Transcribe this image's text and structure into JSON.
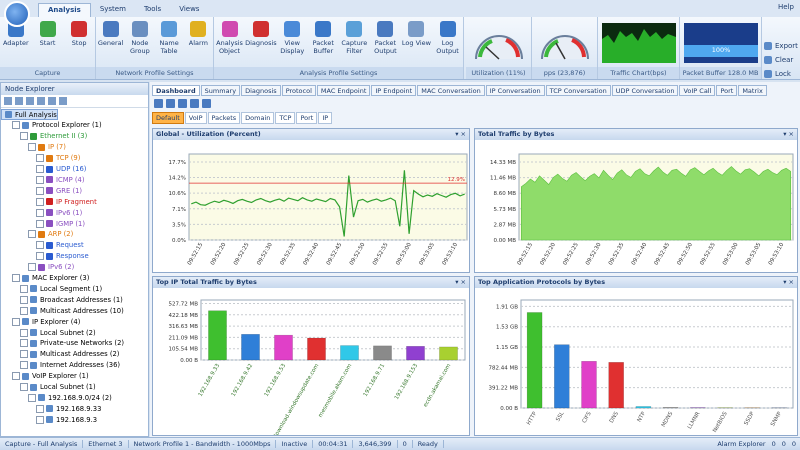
{
  "app": {
    "tabs": [
      "Analysis",
      "System",
      "Tools",
      "Views"
    ],
    "help": "Help",
    "side_actions": [
      "Export",
      "Clear",
      "Lock"
    ]
  },
  "ribbon": {
    "groups": [
      {
        "label": "Capture",
        "buttons": [
          "Adapter",
          "Start",
          "Stop"
        ]
      },
      {
        "label": "Network Profile Settings",
        "buttons": [
          "General",
          "Node Group",
          "Name Table",
          "Alarm"
        ]
      },
      {
        "label": "Analysis Profile Settings",
        "buttons": [
          "Analysis Object",
          "Diagnosis",
          "View Display",
          "Packet Buffer",
          "Capture Filter",
          "Packet Output",
          "Log View",
          "Log Output"
        ]
      }
    ],
    "gauges": [
      "Utilization (11%)",
      "pps (23,876)",
      "Traffic Chart(bps)",
      "Packet Buffer 128.0 MB"
    ],
    "buffer_fill": "100%"
  },
  "node_explorer": {
    "title": "Node Explorer",
    "items": [
      {
        "label": "Full Analysis",
        "depth": 0,
        "color": "#000000"
      },
      {
        "label": "Protocol Explorer (1)",
        "depth": 1,
        "color": "#000000"
      },
      {
        "label": "Ethernet II (3)",
        "depth": 2,
        "color": "#2e9b3a"
      },
      {
        "label": "IP (7)",
        "depth": 3,
        "color": "#e07a10"
      },
      {
        "label": "TCP (9)",
        "depth": 4,
        "color": "#e07a10"
      },
      {
        "label": "UDP (16)",
        "depth": 4,
        "color": "#2a5bd0"
      },
      {
        "label": "ICMP (4)",
        "depth": 4,
        "color": "#8a4fc0"
      },
      {
        "label": "GRE (1)",
        "depth": 4,
        "color": "#8a4fc0"
      },
      {
        "label": "IP Fragment",
        "depth": 4,
        "color": "#d02020"
      },
      {
        "label": "IPv6 (1)",
        "depth": 4,
        "color": "#8a4fc0"
      },
      {
        "label": "IGMP (1)",
        "depth": 4,
        "color": "#8a4fc0"
      },
      {
        "label": "ARP (2)",
        "depth": 3,
        "color": "#e07a10"
      },
      {
        "label": "Request",
        "depth": 4,
        "color": "#2a5bd0"
      },
      {
        "label": "Response",
        "depth": 4,
        "color": "#2a5bd0"
      },
      {
        "label": "IPv6 (2)",
        "depth": 3,
        "color": "#8a4fc0"
      },
      {
        "label": "MAC Explorer (3)",
        "depth": 1,
        "color": "#000000"
      },
      {
        "label": "Local Segment (1)",
        "depth": 2,
        "color": "#000000"
      },
      {
        "label": "Broadcast Addresses (1)",
        "depth": 2,
        "color": "#000000"
      },
      {
        "label": "Multicast Addresses (10)",
        "depth": 2,
        "color": "#000000"
      },
      {
        "label": "IP Explorer (4)",
        "depth": 1,
        "color": "#000000"
      },
      {
        "label": "Local Subnet (2)",
        "depth": 2,
        "color": "#000000"
      },
      {
        "label": "Private-use Networks (2)",
        "depth": 2,
        "color": "#000000"
      },
      {
        "label": "Multicast Addresses (2)",
        "depth": 2,
        "color": "#000000"
      },
      {
        "label": "Internet Addresses (36)",
        "depth": 2,
        "color": "#000000"
      },
      {
        "label": "VoIP Explorer (1)",
        "depth": 1,
        "color": "#000000"
      },
      {
        "label": "Local Subnet (1)",
        "depth": 2,
        "color": "#000000"
      },
      {
        "label": "192.168.9.0/24 (2)",
        "depth": 3,
        "color": "#000000"
      },
      {
        "label": "192.168.9.33",
        "depth": 4,
        "color": "#000000"
      },
      {
        "label": "192.168.9.3",
        "depth": 4,
        "color": "#000000"
      }
    ]
  },
  "dashboard": {
    "tabs": [
      "Dashboard",
      "Summary",
      "Diagnosis",
      "Protocol",
      "MAC Endpoint",
      "IP Endpoint",
      "MAC Conversation",
      "IP Conversation",
      "TCP Conversation",
      "UDP Conversation",
      "VoIP Call",
      "Port",
      "Matrix"
    ],
    "subtabs": [
      "Default",
      "VoIP",
      "Packets",
      "Domain",
      "TCP",
      "Port",
      "IP"
    ],
    "panels": [
      {
        "title": "Global - Utilization (Percent)",
        "type": "line",
        "color": "#2fa02f",
        "ylim": [
          0,
          19.5
        ],
        "yticks": [
          {
            "value": 0,
            "label": "0.0%"
          },
          {
            "value": 3.54,
            "label": "3.5%"
          },
          {
            "value": 7.08,
            "label": "7.1%"
          },
          {
            "value": 10.62,
            "label": "10.6%"
          },
          {
            "value": 14.16,
            "label": "14.2%"
          },
          {
            "value": 17.7,
            "label": "17.7%"
          }
        ],
        "xtick_labels": [
          "09:52:15",
          "09:52:20",
          "09:52:25",
          "09:52:30",
          "09:52:35",
          "09:52:40",
          "09:52:45",
          "09:52:50",
          "09:52:55",
          "09:53:00",
          "09:53:05",
          "09:53:10"
        ],
        "threshold": {
          "value": 12.9,
          "label": "12.9%",
          "color": "#e03030"
        },
        "values": [
          8.2,
          8.6,
          8.0,
          7.9,
          8.4,
          8.8,
          8.5,
          9.0,
          8.7,
          8.3,
          8.9,
          9.2,
          8.8,
          8.5,
          9.1,
          9.4,
          8.9,
          8.6,
          9.0,
          9.3,
          8.8,
          9.5,
          9.2,
          8.9,
          9.6,
          9.1,
          8.8,
          9.3,
          9.0,
          8.7,
          9.4,
          9.1,
          7.5,
          0.8,
          14.6,
          5.2,
          8.9,
          9.2,
          8.6,
          9.0,
          9.3,
          8.8,
          9.1,
          9.5,
          8.9,
          3.1,
          15.8,
          1.4,
          11.2,
          10.4,
          9.8,
          10.2,
          9.9,
          10.5,
          10.1,
          9.7,
          10.3,
          10.6,
          10.0,
          10.4
        ]
      },
      {
        "title": "Total Traffic by Bytes",
        "type": "area",
        "color": "#8fdc6a",
        "ylim": [
          0,
          15.8
        ],
        "yticks": [
          {
            "value": 0,
            "label": "0.00 MB"
          },
          {
            "value": 2.866,
            "label": "2.87 MB"
          },
          {
            "value": 5.732,
            "label": "5.73 MB"
          },
          {
            "value": 8.598,
            "label": "8.60 MB"
          },
          {
            "value": 11.464,
            "label": "11.46 MB"
          },
          {
            "value": 14.33,
            "label": "14.33 MB"
          }
        ],
        "xtick_labels": [
          "09:52:15",
          "09:52:20",
          "09:52:25",
          "09:52:30",
          "09:52:35",
          "09:52:40",
          "09:52:45",
          "09:52:50",
          "09:52:55",
          "09:53:00",
          "09:53:05",
          "09:53:10"
        ],
        "values": [
          9.8,
          10.4,
          11.2,
          10.6,
          11.8,
          11.0,
          10.2,
          11.5,
          12.1,
          11.3,
          10.8,
          11.9,
          12.4,
          11.6,
          10.9,
          11.7,
          12.2,
          11.4,
          12.8,
          11.9,
          11.1,
          12.3,
          12.9,
          12.0,
          11.5,
          12.6,
          13.1,
          12.2,
          11.8,
          12.7,
          13.4,
          12.5,
          11.9,
          12.8,
          13.0,
          12.3,
          11.7,
          12.9,
          13.3,
          12.6,
          12.0,
          12.7,
          13.2,
          12.4,
          11.9,
          12.8,
          13.5,
          12.7,
          12.1,
          12.9,
          13.1,
          12.5,
          11.8,
          12.6,
          13.0,
          12.4,
          12.0,
          12.8,
          13.2,
          12.6
        ]
      },
      {
        "title": "Top IP Total Traffic by Bytes",
        "type": "bar",
        "ylim": [
          0,
          560
        ],
        "yticks": [
          {
            "value": 0,
            "label": "0.00 B"
          },
          {
            "value": 105.544,
            "label": "105.54 MB"
          },
          {
            "value": 211.088,
            "label": "211.09 MB"
          },
          {
            "value": 316.632,
            "label": "316.63 MB"
          },
          {
            "value": 422.176,
            "label": "422.18 MB"
          },
          {
            "value": 527.72,
            "label": "527.72 MB"
          }
        ],
        "categories": [
          "192.168.9.33",
          "192.168.9.42",
          "192.168.9.53",
          "download.windowsupdate.com",
          "mesmobile.akam.com",
          "192.168.9.71",
          "192.168.9.153",
          "ecdn.akamai.com"
        ],
        "values": [
          460,
          240,
          232,
          205,
          135,
          132,
          128,
          122
        ],
        "colors": [
          "#3fbf2f",
          "#2f7fd8",
          "#e040c8",
          "#e03030",
          "#30c8e8",
          "#8a8a8a",
          "#9040d0",
          "#a8d030"
        ]
      },
      {
        "title": "Top Application Protocols by Bytes",
        "type": "bar",
        "ylim": [
          0,
          2080
        ],
        "yticks": [
          {
            "value": 0,
            "label": "0.00 B"
          },
          {
            "value": 391.22,
            "label": "391.22 MB"
          },
          {
            "value": 782.44,
            "label": "782.44 MB"
          },
          {
            "value": 1173.66,
            "label": "1.15 GB"
          },
          {
            "value": 1564.88,
            "label": "1.53 GB"
          },
          {
            "value": 1956.1,
            "label": "1.91 GB"
          }
        ],
        "categories": [
          "HTTP",
          "SSL",
          "CIFS",
          "DNS",
          "NTP",
          "MDNS",
          "LLMNR",
          "NetBIOS",
          "SSDP",
          "SNMP"
        ],
        "values": [
          1840,
          1220,
          900,
          880,
          30,
          12,
          8,
          6,
          5,
          4
        ],
        "colors": [
          "#3fbf2f",
          "#2f7fd8",
          "#e040c8",
          "#e03030",
          "#30c8e8",
          "#8a8a8a",
          "#9040d0",
          "#a8d030",
          "#e08a20",
          "#4060a0"
        ]
      }
    ]
  },
  "status_bar": {
    "items": [
      "Capture - Full Analysis",
      "Ethernet 3",
      "Network Profile 1 - Bandwidth - 1000Mbps",
      "Inactive",
      "00:04:31",
      "3,646,399",
      "0",
      "Ready"
    ],
    "alarm": "Alarm Explorer",
    "counters": [
      "0",
      "0",
      "0"
    ]
  }
}
